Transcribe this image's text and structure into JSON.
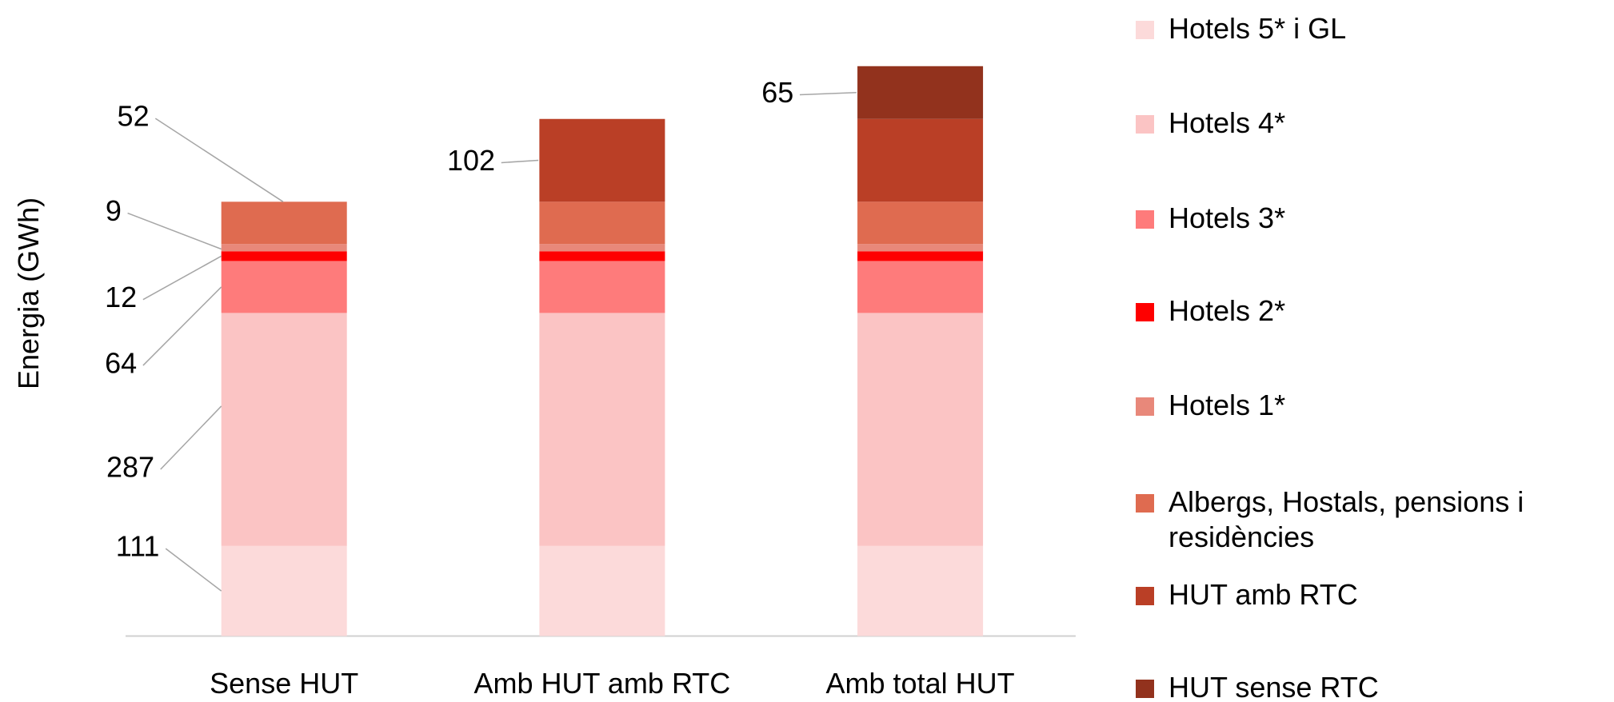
{
  "chart_data": {
    "type": "stacked_bar",
    "y_label": "Energia (GWh)",
    "categories": [
      "Sense HUT",
      "Amb HUT amb RTC",
      "Amb total HUT"
    ],
    "series": [
      {
        "name": "Hotels 5* i GL",
        "color": "#fcdada",
        "values": [
          111,
          111,
          111
        ]
      },
      {
        "name": "Hotels 4*",
        "color": "#fbc4c4",
        "values": [
          287,
          287,
          287
        ]
      },
      {
        "name": "Hotels 3*",
        "color": "#fe7b7b",
        "values": [
          64,
          64,
          64
        ]
      },
      {
        "name": "Hotels 2*",
        "color": "#fe0000",
        "values": [
          12,
          12,
          12
        ]
      },
      {
        "name": "Hotels 1*",
        "color": "#e8887a",
        "values": [
          9,
          9,
          9
        ]
      },
      {
        "name": "Albergs, Hostals, pensions i residències",
        "color": "#df6b50",
        "values": [
          52,
          52,
          52
        ]
      },
      {
        "name": "HUT amb RTC",
        "color": "#ba3f26",
        "values": [
          null,
          102,
          102
        ]
      },
      {
        "name": "HUT sense RTC",
        "color": "#92321d",
        "values": [
          null,
          null,
          65
        ]
      }
    ],
    "ylim": [
      0,
      720
    ]
  }
}
